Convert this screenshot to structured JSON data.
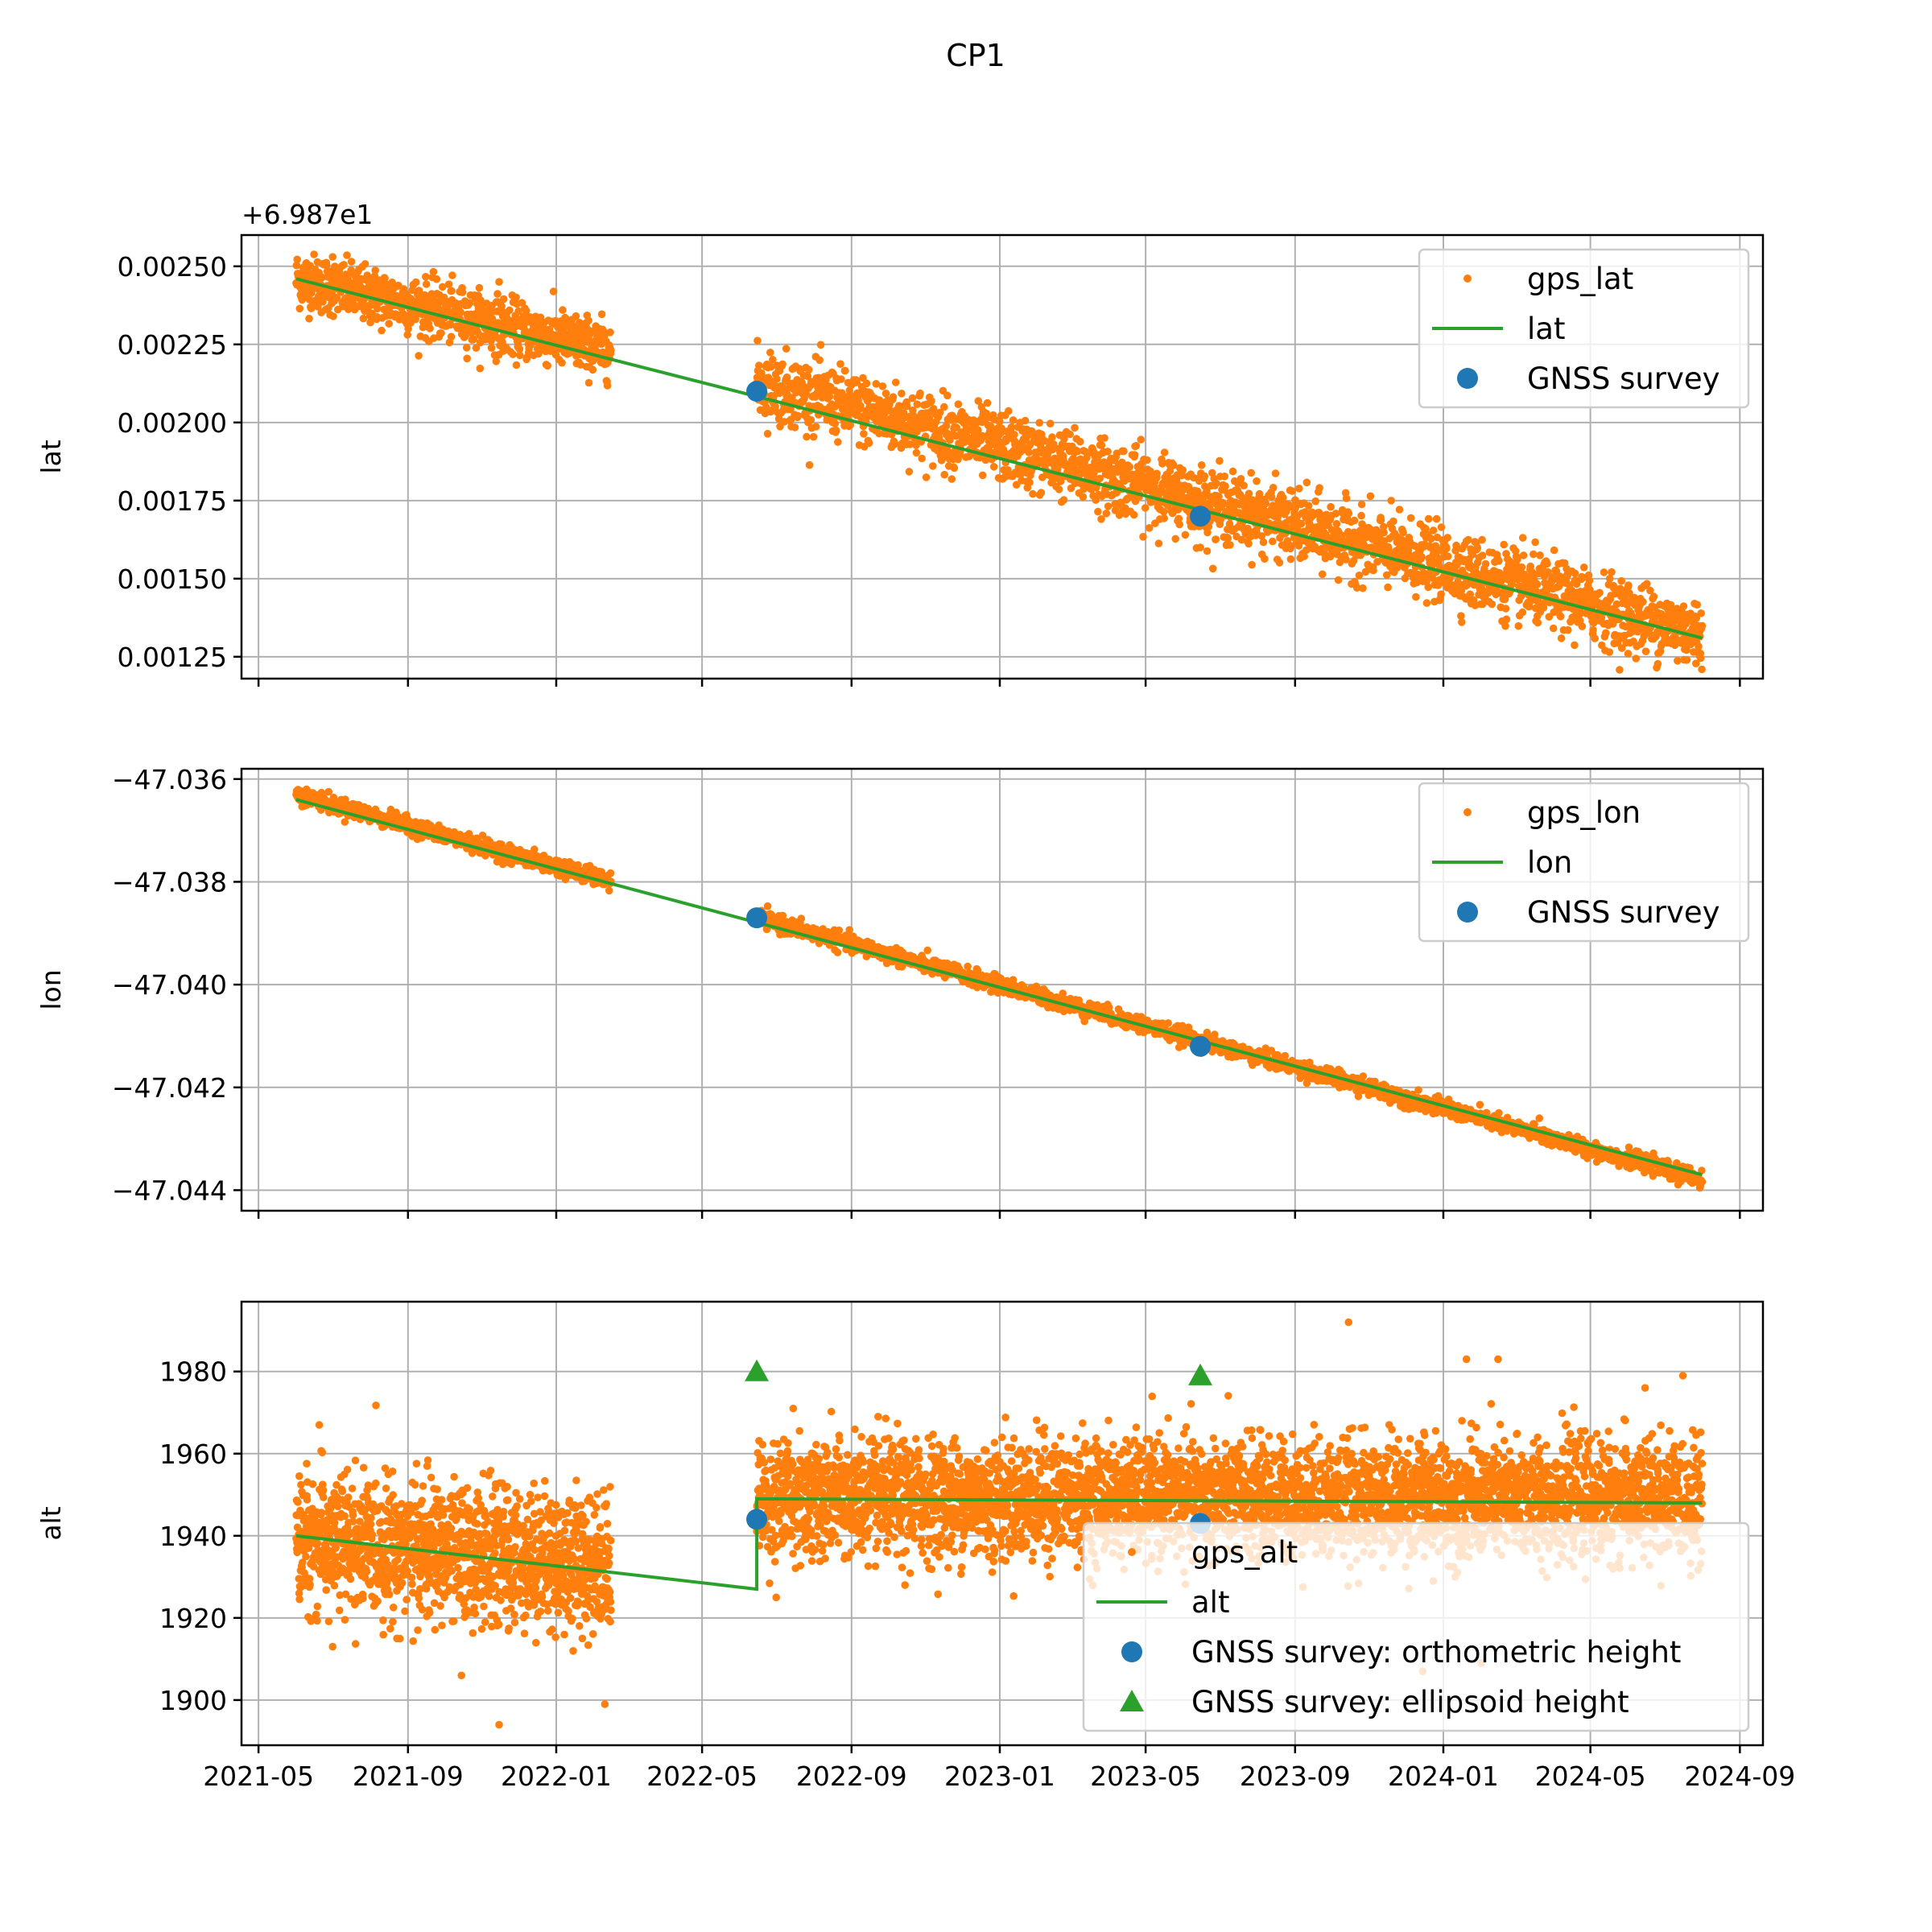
{
  "figure": {
    "title": "CP1",
    "colors": {
      "gps": "#ff7f0e",
      "trend": "#2ca02c",
      "survey": "#1f77b4",
      "ellipsoid": "#2ca02c",
      "grid": "#b0b0b0"
    }
  },
  "chart_data": [
    {
      "type": "scatter",
      "name": "lat-panel",
      "title": "",
      "xlabel": "",
      "ylabel": "lat",
      "offset_label": "+6.987e1",
      "xlim": [
        "2021-04-17",
        "2024-09-20"
      ],
      "ylim": [
        0.00118,
        0.0026
      ],
      "x_ticks": [
        "2021-05",
        "2021-09",
        "2022-01",
        "2022-05",
        "2022-09",
        "2023-01",
        "2023-05",
        "2023-09",
        "2024-01",
        "2024-05",
        "2024-09"
      ],
      "y_ticks": [
        "0.00125",
        "0.00150",
        "0.00175",
        "0.00200",
        "0.00225",
        "0.00250"
      ],
      "grid": true,
      "legend": {
        "position": "top-right",
        "entries": [
          "gps_lat",
          "lat",
          "GNSS survey"
        ]
      },
      "gps_segments": [
        {
          "start": "2021-06-01",
          "end": "2022-02-15",
          "y_start": 0.00246,
          "y_end": 0.00223,
          "spread": 4.5e-05,
          "n": 900
        },
        {
          "start": "2022-06-15",
          "end": "2024-08-01",
          "y_start": 0.00213,
          "y_end": 0.00132,
          "spread": 5.5e-05,
          "n": 2600
        }
      ],
      "gps_outliers": [
        [
          "2021-07-01",
          0.00253
        ],
        [
          "2021-11-15",
          0.00245
        ],
        [
          "2022-11-01",
          0.00203
        ],
        [
          "2023-06-15",
          0.0016
        ],
        [
          "2024-06-01",
          0.00126
        ],
        [
          "2023-10-20",
          0.00149
        ]
      ],
      "line": {
        "name": "lat",
        "x": [
          "2021-06-01",
          "2024-08-01"
        ],
        "y": [
          0.00246,
          0.00131
        ]
      },
      "survey": {
        "name": "GNSS survey",
        "x": [
          "2022-06-15",
          "2023-06-15"
        ],
        "y": [
          0.0021,
          0.0017
        ]
      }
    },
    {
      "type": "scatter",
      "name": "lon-panel",
      "title": "",
      "xlabel": "",
      "ylabel": "lon",
      "xlim": [
        "2021-04-17",
        "2024-09-20"
      ],
      "ylim": [
        -47.0444,
        -47.0358
      ],
      "x_ticks": [
        "2021-05",
        "2021-09",
        "2022-01",
        "2022-05",
        "2022-09",
        "2023-01",
        "2023-05",
        "2023-09",
        "2024-01",
        "2024-05",
        "2024-09"
      ],
      "y_ticks": [
        "−47.036",
        "−47.038",
        "−47.040",
        "−47.042",
        "−47.044"
      ],
      "y_tick_values": [
        -47.036,
        -47.038,
        -47.04,
        -47.042,
        -47.044
      ],
      "grid": true,
      "legend": {
        "position": "top-right",
        "entries": [
          "gps_lon",
          "lon",
          "GNSS survey"
        ]
      },
      "gps_segments": [
        {
          "start": "2021-06-01",
          "end": "2022-02-15",
          "y_start": -47.0363,
          "y_end": -47.038,
          "spread": 8e-05,
          "n": 700
        },
        {
          "start": "2022-06-15",
          "end": "2024-08-01",
          "y_start": -47.0387,
          "y_end": -47.0438,
          "spread": 8e-05,
          "n": 2000
        }
      ],
      "gps_outliers": [
        [
          "2021-07-20",
          -47.0365
        ],
        [
          "2024-03-20",
          -47.0426
        ]
      ],
      "line": {
        "name": "lon",
        "x": [
          "2021-06-01",
          "2024-08-01"
        ],
        "y": [
          -47.0364,
          -47.0437
        ]
      },
      "survey": {
        "name": "GNSS survey",
        "x": [
          "2022-06-15",
          "2023-06-15"
        ],
        "y": [
          -47.0387,
          -47.0412
        ]
      }
    },
    {
      "type": "scatter",
      "name": "alt-panel",
      "title": "",
      "xlabel": "",
      "ylabel": "alt",
      "xlim": [
        "2021-04-17",
        "2024-09-20"
      ],
      "ylim": [
        1889,
        1997
      ],
      "x_ticks": [
        "2021-05",
        "2021-09",
        "2022-01",
        "2022-05",
        "2022-09",
        "2023-01",
        "2023-05",
        "2023-09",
        "2024-01",
        "2024-05",
        "2024-09"
      ],
      "y_ticks": [
        "1900",
        "1920",
        "1940",
        "1960",
        "1980"
      ],
      "grid": true,
      "legend": {
        "position": "lower-right",
        "entries": [
          "gps_alt",
          "alt",
          "GNSS survey: orthometric height",
          "GNSS survey: ellipsoid height"
        ]
      },
      "gps_segments": [
        {
          "start": "2021-06-01",
          "end": "2022-02-15",
          "y_start": 1939,
          "y_end": 1933,
          "spread": 8,
          "n": 1500
        },
        {
          "start": "2022-06-15",
          "end": "2024-08-01",
          "y_start": 1949,
          "y_end": 1949,
          "spread": 7,
          "n": 4200
        }
      ],
      "gps_outliers": [
        [
          "2021-06-20",
          1967
        ],
        [
          "2021-11-15",
          1894
        ],
        [
          "2022-02-10",
          1899
        ],
        [
          "2023-10-15",
          1992
        ],
        [
          "2024-02-15",
          1983
        ],
        [
          "2024-01-20",
          1983
        ],
        [
          "2022-07-01",
          1925
        ],
        [
          "2022-10-15",
          1928
        ],
        [
          "2023-12-15",
          1907
        ],
        [
          "2024-02-01",
          1909
        ],
        [
          "2022-07-15",
          1971
        ],
        [
          "2024-06-15",
          1976
        ],
        [
          "2021-10-15",
          1906
        ],
        [
          "2021-07-01",
          1913
        ]
      ],
      "line": {
        "name": "alt",
        "x": [
          "2021-06-01",
          "2022-06-15",
          "2022-06-15",
          "2024-08-01"
        ],
        "y": [
          1940,
          1927,
          1949,
          1948
        ]
      },
      "survey": {
        "name": "GNSS survey: orthometric height",
        "x": [
          "2022-06-15",
          "2023-06-15"
        ],
        "y": [
          1944,
          1943
        ]
      },
      "survey_ellipsoid": {
        "name": "GNSS survey: ellipsoid height",
        "x": [
          "2022-06-15",
          "2023-06-15"
        ],
        "y": [
          1980,
          1979
        ]
      }
    }
  ]
}
